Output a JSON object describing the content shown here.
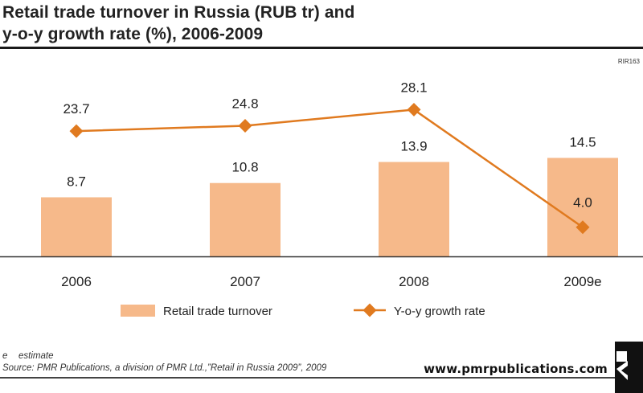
{
  "title": {
    "line1": "Retail trade turnover in Russia (RUB tr) and",
    "line2": "y-o-y growth rate (%), 2006-2009"
  },
  "code": "RIR163",
  "chart_data": {
    "type": "bar",
    "categories": [
      "2006",
      "2007",
      "2008",
      "2009e"
    ],
    "series": [
      {
        "name": "Retail trade turnover",
        "type": "bar",
        "values": [
          8.7,
          10.8,
          13.9,
          14.5
        ],
        "labels": [
          "8.7",
          "10.8",
          "13.9",
          "14.5"
        ]
      },
      {
        "name": "Y-o-y growth rate",
        "type": "line",
        "values": [
          23.7,
          24.8,
          28.1,
          4.0
        ],
        "labels": [
          "23.7",
          "24.8",
          "28.1",
          "4.0"
        ]
      }
    ],
    "legend": "bottom",
    "grid": false
  },
  "colors": {
    "bar": "#f6b98a",
    "line": "#e07a1f",
    "axis": "#333333"
  },
  "footnote": {
    "key": "e",
    "key_text": "estimate",
    "source": "Source: PMR Publications, a division of PMR Ltd.,”Retail in Russia 2009”, 2009"
  },
  "website": "www.pmrpublications.com"
}
